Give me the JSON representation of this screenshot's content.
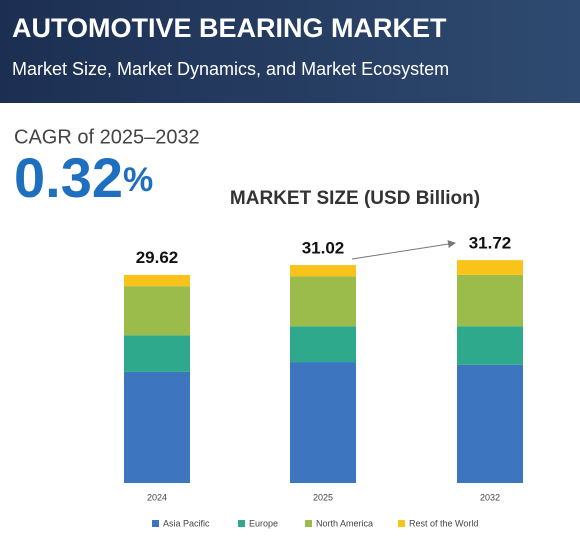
{
  "header": {
    "title": "AUTOMOTIVE BEARING MARKET",
    "subtitle": "Market Size, Market Dynamics, and Market Ecosystem"
  },
  "cagr": {
    "label": "CAGR of 2025–2032",
    "value": "0.32",
    "unit": "%"
  },
  "chart_data": {
    "type": "stacked_bar",
    "title": "MARKET SIZE (USD Billion)",
    "categories": [
      "2024",
      "2025",
      "2032"
    ],
    "series": [
      {
        "name": "Asia Pacific",
        "color": "#3d75be",
        "values": [
          15.8,
          17.2,
          16.8
        ]
      },
      {
        "name": "Europe",
        "color": "#2fa98c",
        "values": [
          5.2,
          5.1,
          5.5
        ]
      },
      {
        "name": "North America",
        "color": "#9bbb4a",
        "values": [
          7.0,
          7.1,
          7.3
        ]
      },
      {
        "name": "Rest of the World",
        "color": "#f9c31a",
        "values": [
          1.6,
          1.6,
          2.1
        ]
      }
    ],
    "totals": [
      29.62,
      31.02,
      31.72
    ]
  }
}
